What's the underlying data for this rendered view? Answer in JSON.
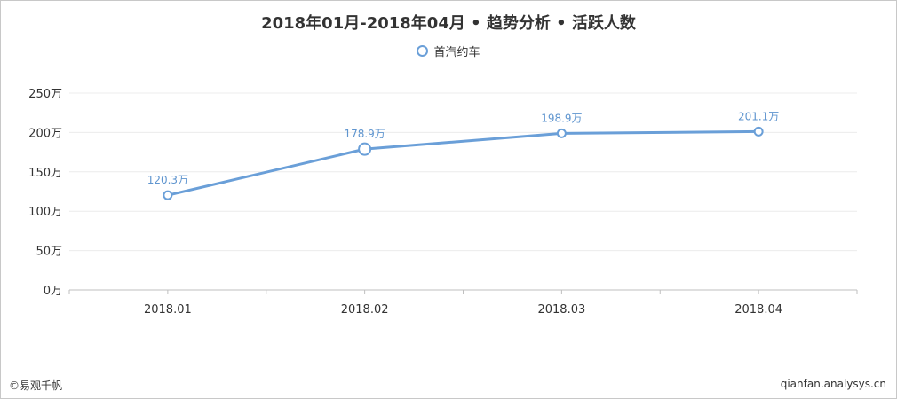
{
  "chart_data": {
    "type": "line",
    "title": "2018年01月-2018年04月 • 趋势分析 • 活跃人数",
    "categories": [
      "2018.01",
      "2018.02",
      "2018.03",
      "2018.04"
    ],
    "series": [
      {
        "name": "首汽约车",
        "values": [
          120.3,
          178.9,
          198.9,
          201.1
        ],
        "labels": [
          "120.3万",
          "178.9万",
          "198.9万",
          "201.1万"
        ]
      }
    ],
    "y_ticks": [
      "0万",
      "50万",
      "100万",
      "150万",
      "200万",
      "250万"
    ],
    "ylim": [
      0,
      250
    ],
    "grid": true,
    "legend_position": "top-center",
    "colors": {
      "series": "#6a9fd8",
      "label": "#5f95cf",
      "grid": "#ececec",
      "axis": "#bfbfbf"
    }
  },
  "footer": {
    "left": "©易观千帆",
    "right": "qianfan.analysys.cn"
  }
}
